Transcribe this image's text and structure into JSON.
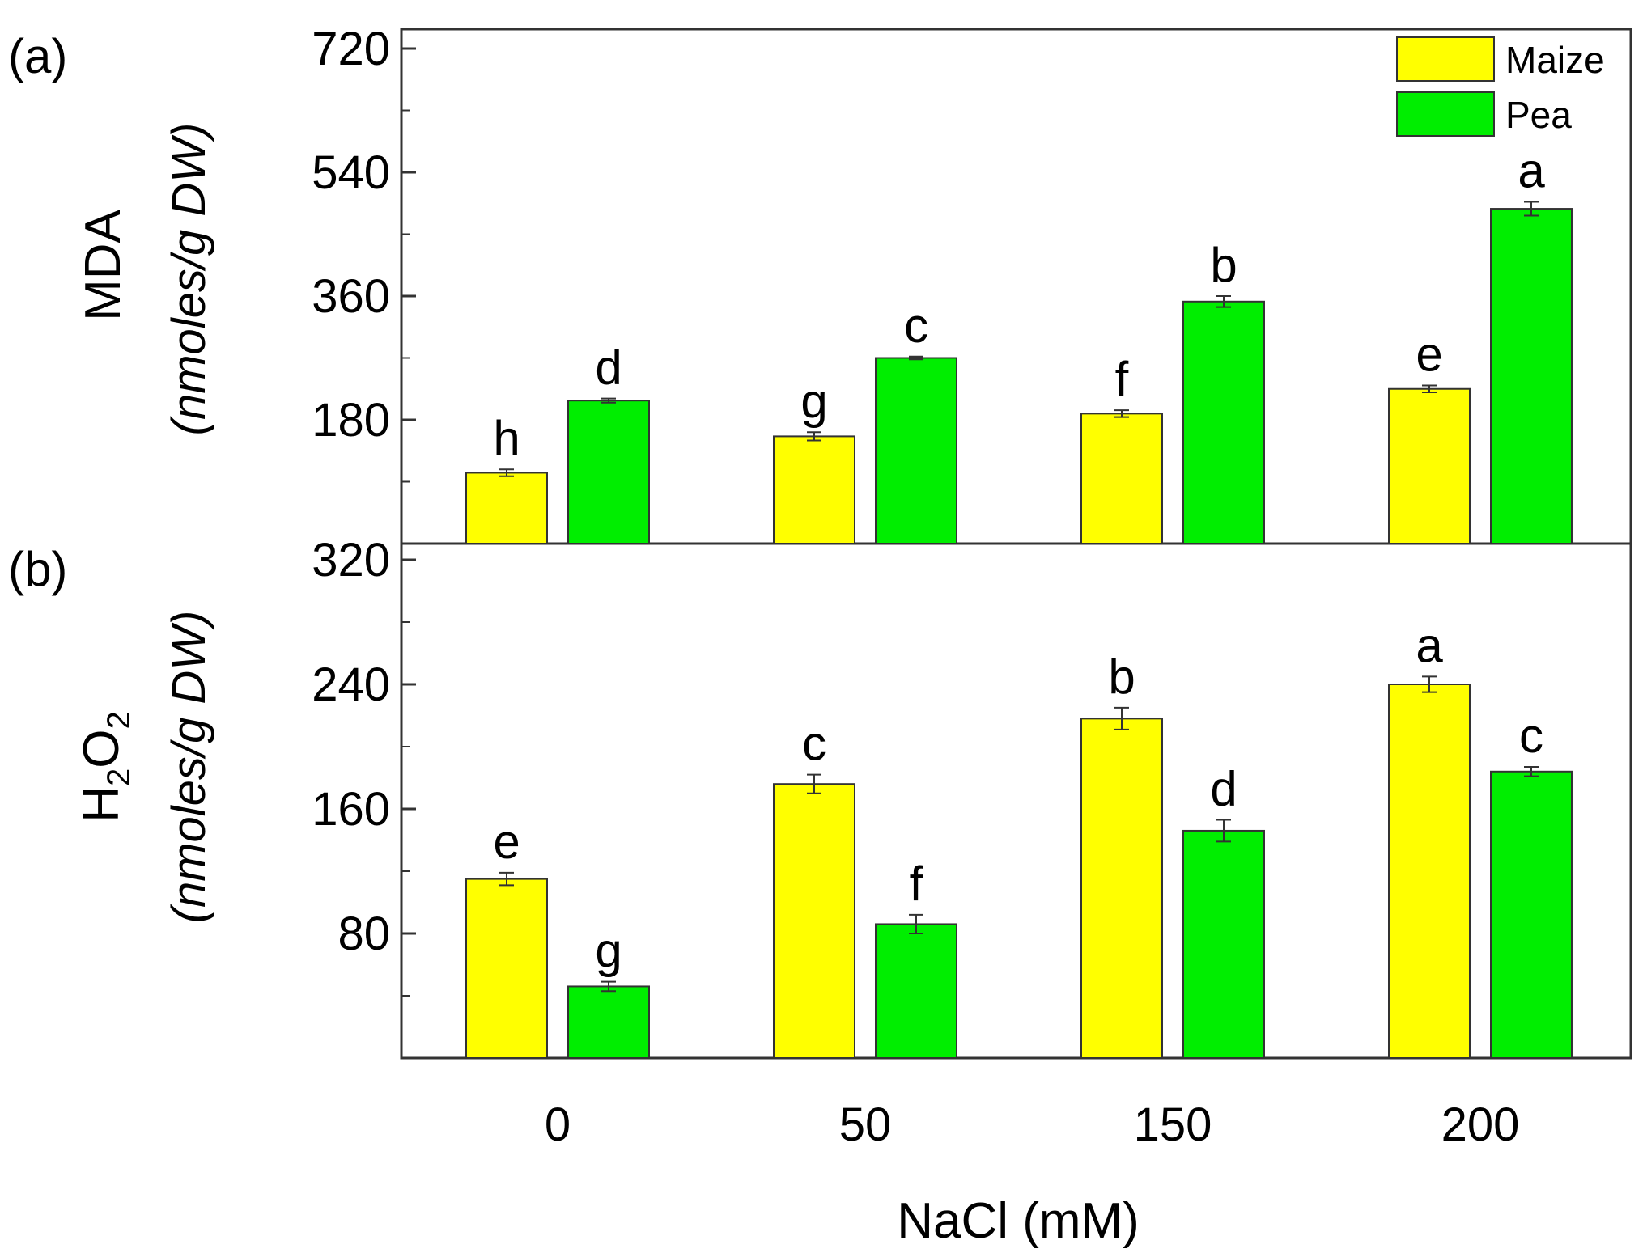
{
  "chart_data": [
    {
      "type": "bar",
      "panel_label": "(a)",
      "ylabel_main": "MDA",
      "ylabel_unit": "(nmoles/g DW)",
      "ylim": [
        0,
        720
      ],
      "yticks": [
        "180",
        "360",
        "540",
        "720"
      ],
      "categories": [
        "0",
        "50",
        "150",
        "200"
      ],
      "series": [
        {
          "name": "Maize",
          "color": "#ffff00",
          "values": [
            103,
            156,
            189,
            225
          ],
          "errors": [
            5,
            6,
            5,
            5
          ],
          "letters": [
            "h",
            "g",
            "f",
            "e"
          ]
        },
        {
          "name": "Pea",
          "color": "#00ee00",
          "values": [
            208,
            270,
            352,
            487
          ],
          "errors": [
            3,
            2,
            8,
            10
          ],
          "letters": [
            "d",
            "c",
            "b",
            "a"
          ]
        }
      ]
    },
    {
      "type": "bar",
      "panel_label": "(b)",
      "ylabel_main": "H",
      "ylabel_sub1": "2",
      "ylabel_mid": "O",
      "ylabel_sub2": "2",
      "ylabel_unit": "(nmoles/g DW)",
      "ylim": [
        0,
        320
      ],
      "yticks": [
        "80",
        "160",
        "240",
        "320"
      ],
      "categories": [
        "0",
        "50",
        "150",
        "200"
      ],
      "series": [
        {
          "name": "Maize",
          "color": "#ffff00",
          "values": [
            115,
            176,
            218,
            240
          ],
          "errors": [
            4,
            6,
            7,
            5
          ],
          "letters": [
            "e",
            "c",
            "b",
            "a"
          ]
        },
        {
          "name": "Pea",
          "color": "#00ee00",
          "values": [
            46,
            86,
            146,
            184
          ],
          "errors": [
            3,
            6,
            7,
            3
          ],
          "letters": [
            "g",
            "f",
            "d",
            "c"
          ]
        }
      ]
    }
  ],
  "xaxis": {
    "title": "NaCl (mM)",
    "tick_labels": [
      "0",
      "50",
      "150",
      "200"
    ]
  },
  "legend": {
    "items": [
      {
        "label": "Maize",
        "color": "#ffff00"
      },
      {
        "label": "Pea",
        "color": "#00ee00"
      }
    ]
  }
}
